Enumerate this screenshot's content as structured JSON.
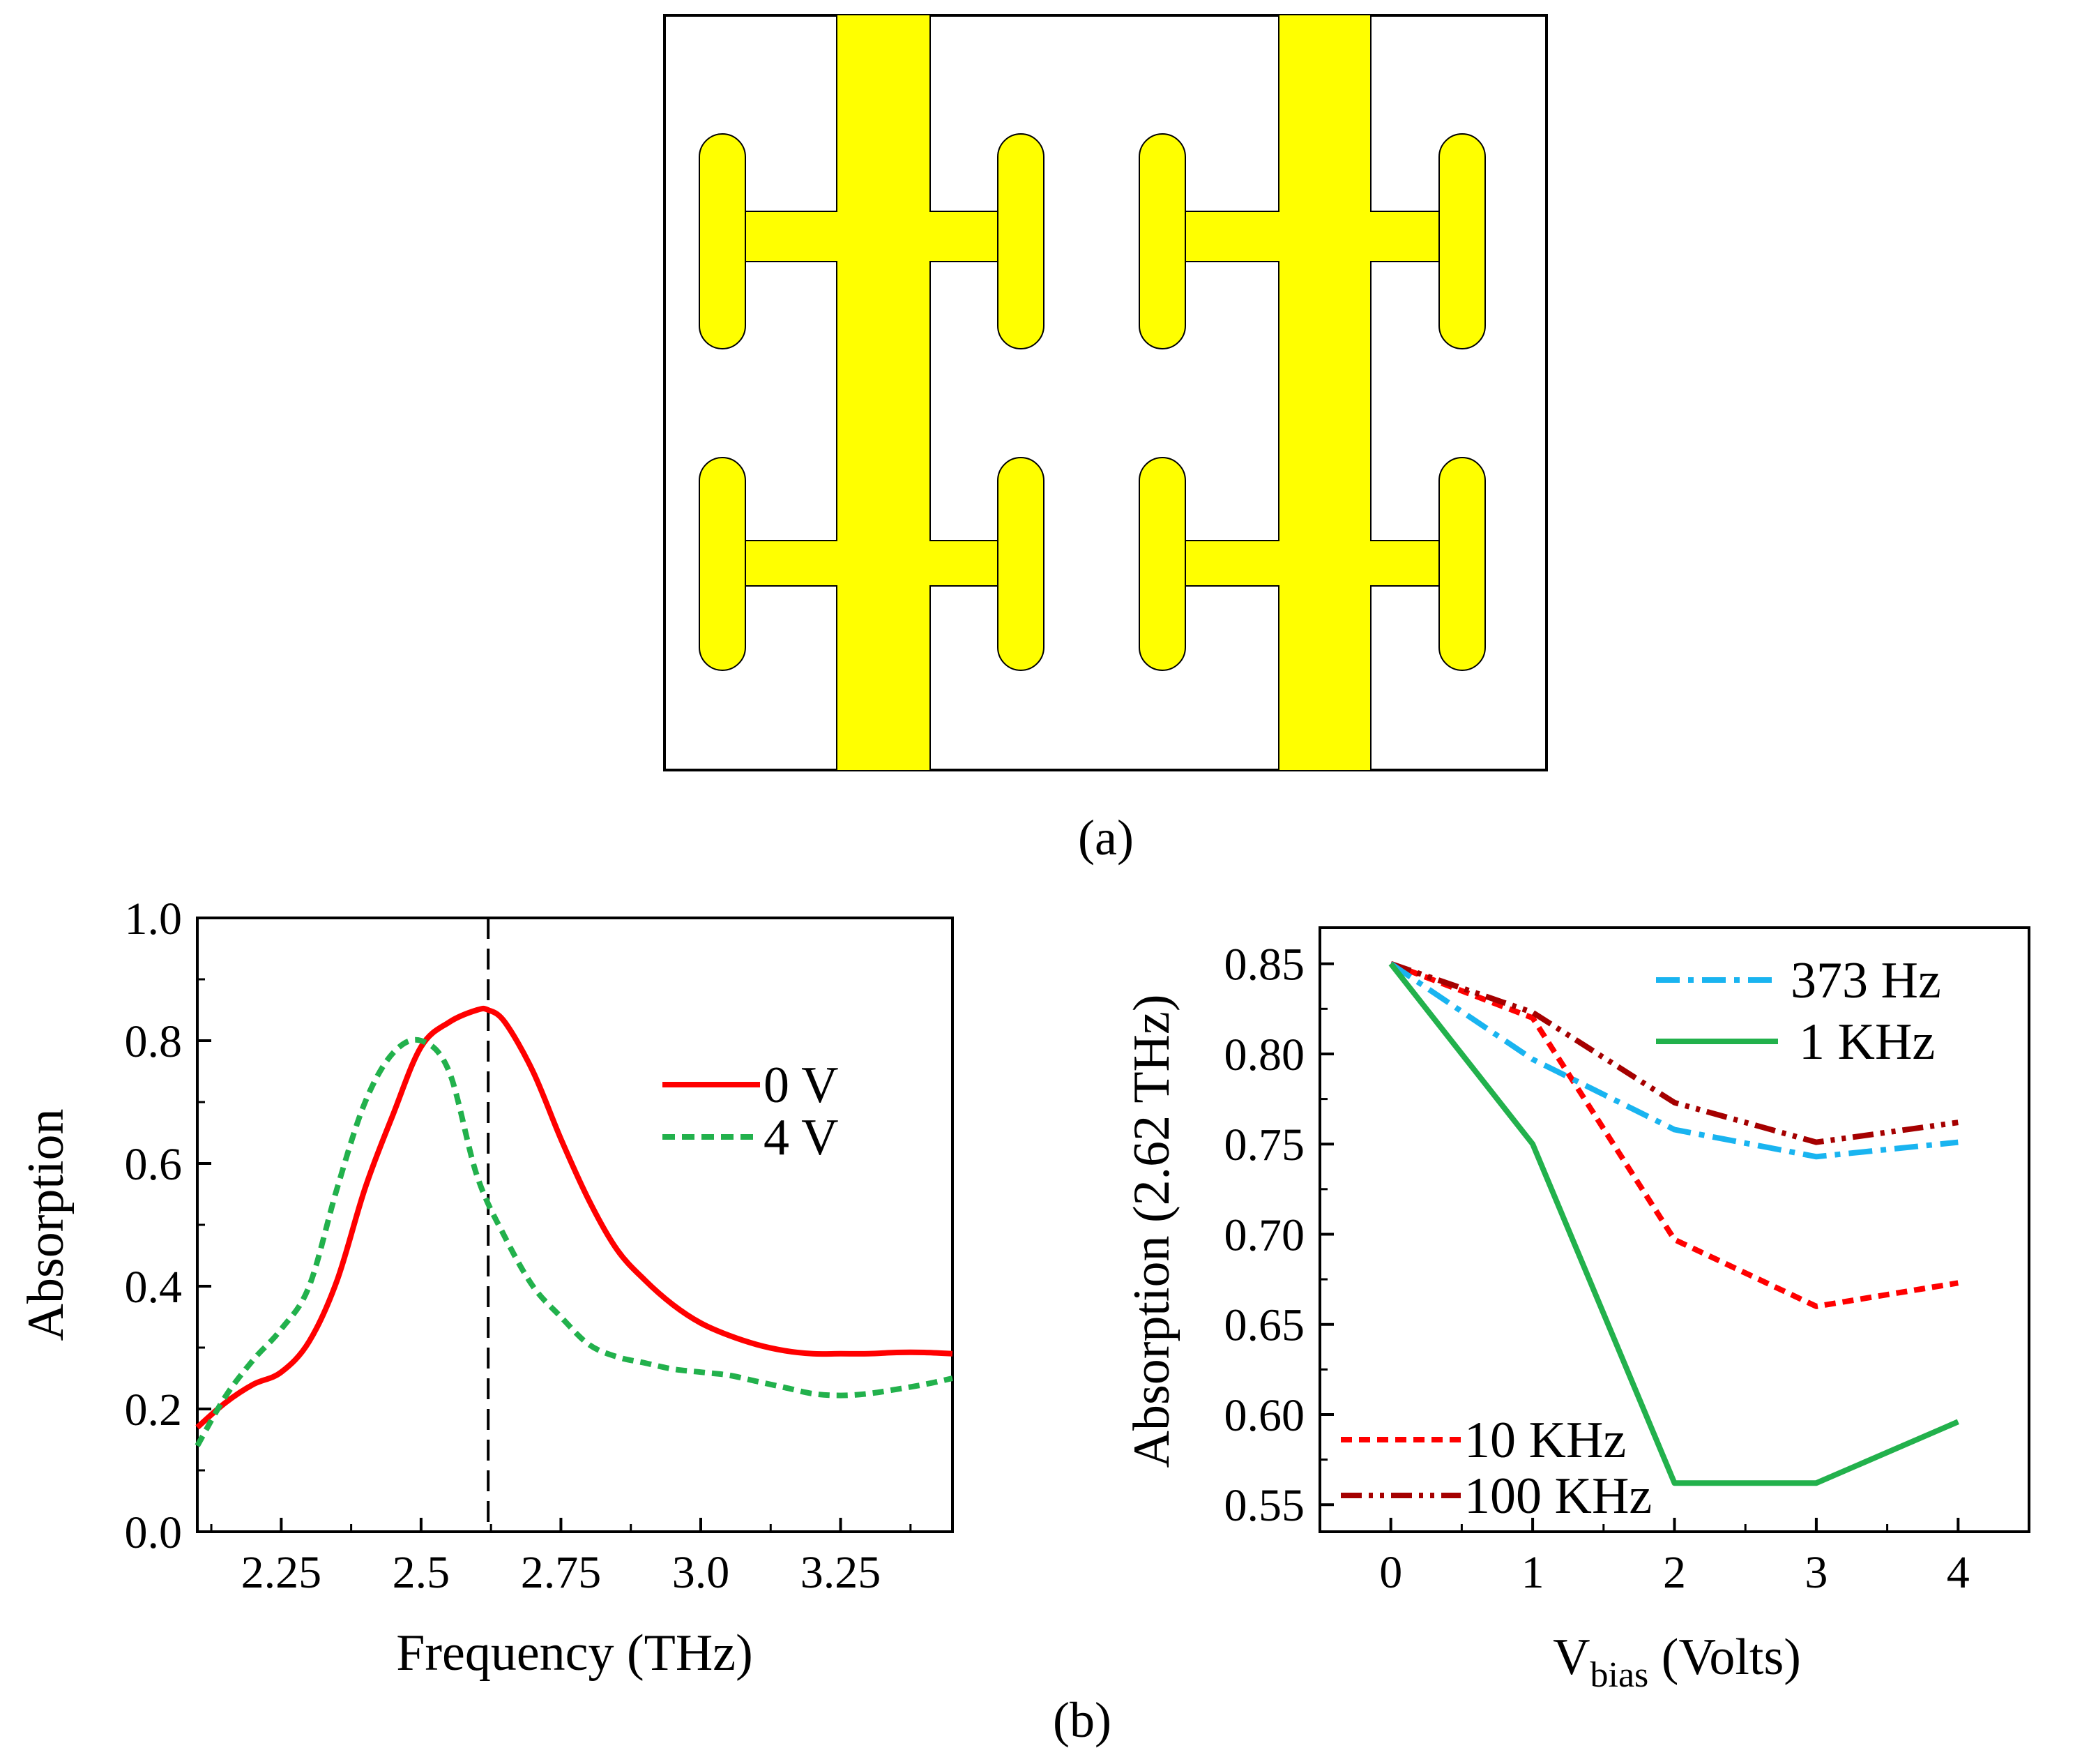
{
  "panel_labels": {
    "a": "(a)",
    "b": "(b)"
  },
  "colors": {
    "metal": "#ffff00",
    "red": "#ff0000",
    "green": "#22b14c",
    "blue": "#19b4f0",
    "dark_red": "#a50000",
    "dashed_green": "#22b14c",
    "marker_line": "#000000"
  },
  "chart_data": [
    {
      "type": "line",
      "panel": "b-left",
      "title": "",
      "xlabel": "Frequency (THz)",
      "ylabel": "Absorption",
      "xlim": [
        2.1,
        3.45
      ],
      "ylim": [
        0.0,
        1.0
      ],
      "xticks": [
        2.25,
        2.5,
        2.75,
        3.0,
        3.25
      ],
      "xtick_labels": [
        "2.25",
        "2.5",
        "2.75",
        "3.0",
        "3.25"
      ],
      "yticks": [
        0.0,
        0.2,
        0.4,
        0.6,
        0.8,
        1.0
      ],
      "ytick_labels": [
        "0.0",
        "0.2",
        "0.4",
        "0.6",
        "0.8",
        "1.0"
      ],
      "reference_line_x": 2.62,
      "legend_position": "center-right",
      "series": [
        {
          "name": "0 V",
          "style": "solid",
          "color": "#ff0000",
          "x": [
            2.1,
            2.15,
            2.2,
            2.25,
            2.3,
            2.35,
            2.4,
            2.45,
            2.5,
            2.55,
            2.6,
            2.62,
            2.65,
            2.7,
            2.75,
            2.8,
            2.85,
            2.9,
            2.95,
            3.0,
            3.05,
            3.1,
            3.15,
            3.2,
            3.25,
            3.3,
            3.35,
            3.4,
            3.45
          ],
          "y": [
            0.17,
            0.21,
            0.24,
            0.26,
            0.31,
            0.41,
            0.56,
            0.68,
            0.79,
            0.83,
            0.85,
            0.85,
            0.83,
            0.75,
            0.64,
            0.54,
            0.46,
            0.41,
            0.37,
            0.34,
            0.32,
            0.305,
            0.295,
            0.29,
            0.29,
            0.29,
            0.292,
            0.292,
            0.29
          ]
        },
        {
          "name": "4 V",
          "style": "dashed",
          "color": "#22b14c",
          "x": [
            2.1,
            2.15,
            2.2,
            2.25,
            2.3,
            2.35,
            2.4,
            2.45,
            2.5,
            2.55,
            2.6,
            2.65,
            2.7,
            2.75,
            2.8,
            2.85,
            2.9,
            2.95,
            3.0,
            3.05,
            3.1,
            3.15,
            3.2,
            3.25,
            3.3,
            3.35,
            3.4,
            3.45
          ],
          "y": [
            0.14,
            0.22,
            0.28,
            0.33,
            0.4,
            0.56,
            0.7,
            0.78,
            0.8,
            0.75,
            0.58,
            0.48,
            0.4,
            0.35,
            0.305,
            0.285,
            0.275,
            0.265,
            0.26,
            0.255,
            0.245,
            0.235,
            0.225,
            0.222,
            0.225,
            0.232,
            0.24,
            0.25
          ]
        }
      ]
    },
    {
      "type": "line",
      "panel": "b-right",
      "title": "",
      "xlabel_main": "V",
      "xlabel_sub": "bias",
      "xlabel_rest": " (Volts)",
      "ylabel": "Absorption (2.62 THz)",
      "xlim": [
        -0.5,
        4.5
      ],
      "ylim": [
        0.535,
        0.87
      ],
      "xticks": [
        0,
        1,
        2,
        3,
        4
      ],
      "xtick_labels": [
        "0",
        "1",
        "2",
        "3",
        "4"
      ],
      "yticks": [
        0.55,
        0.6,
        0.65,
        0.7,
        0.75,
        0.8,
        0.85
      ],
      "ytick_labels": [
        "0.55",
        "0.60",
        "0.65",
        "0.70",
        "0.75",
        "0.80",
        "0.85"
      ],
      "legend_position": "top-right and bottom-left",
      "series": [
        {
          "name": "373 Hz",
          "style": "dashdot",
          "color": "#19b4f0",
          "x": [
            0,
            1,
            2,
            3,
            4
          ],
          "y": [
            0.85,
            0.797,
            0.758,
            0.743,
            0.751
          ]
        },
        {
          "name": "1 KHz",
          "style": "solid",
          "color": "#22b14c",
          "x": [
            0,
            1,
            2,
            3,
            4
          ],
          "y": [
            0.85,
            0.75,
            0.562,
            0.562,
            0.596
          ]
        },
        {
          "name": "10 KHz",
          "style": "dashed",
          "color": "#ff0000",
          "x": [
            0,
            1,
            2,
            3,
            4
          ],
          "y": [
            0.85,
            0.82,
            0.697,
            0.66,
            0.673
          ]
        },
        {
          "name": "100 KHz",
          "style": "dashdotdot",
          "color": "#a50000",
          "x": [
            0,
            1,
            2,
            3,
            4
          ],
          "y": [
            0.85,
            0.823,
            0.773,
            0.751,
            0.762
          ]
        }
      ]
    }
  ]
}
